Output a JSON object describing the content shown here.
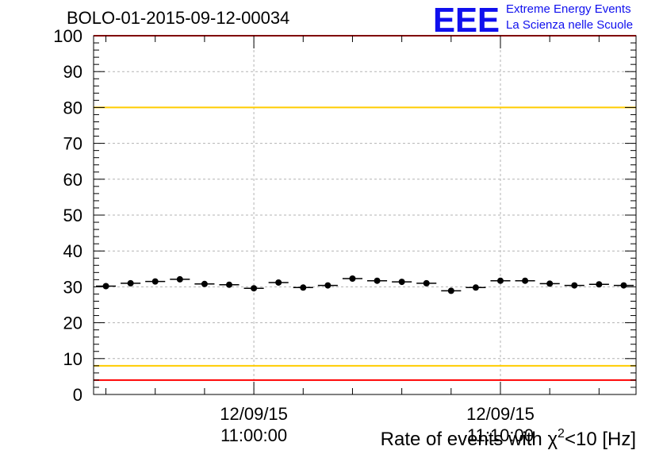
{
  "title": "BOLO-01-2015-09-12-00034",
  "logo": {
    "mark": "EEE",
    "line1": "Extreme Energy Events",
    "line2": "La Scienza nelle Scuole",
    "color": "#1010ee"
  },
  "chart_data": {
    "type": "scatter",
    "title": "BOLO-01-2015-09-12-00034",
    "xlabel_prefix": "Rate of events with",
    "xlabel_chi": "χ",
    "xlabel_sup": "2",
    "xlabel_suffix": "<10 [Hz]",
    "ylabel": "",
    "ylim": [
      0,
      100
    ],
    "y_ticks": [
      "0",
      "10",
      "20",
      "30",
      "40",
      "50",
      "60",
      "70",
      "80",
      "90",
      "100"
    ],
    "x_tick_labels": [
      {
        "date": "12/09/15",
        "time": "11:00:00",
        "bin": 6.5
      },
      {
        "date": "12/09/15",
        "time": "11:10:00",
        "bin": 16.5
      }
    ],
    "bins": 22,
    "values": [
      30.2,
      31.0,
      31.5,
      32.1,
      30.8,
      30.6,
      29.6,
      31.2,
      29.8,
      30.4,
      32.3,
      31.7,
      31.4,
      31.0,
      28.9,
      29.8,
      31.7,
      31.7,
      30.9,
      30.4,
      30.7,
      30.4
    ],
    "reference_lines": [
      {
        "value": 100,
        "color": "#ff0000"
      },
      {
        "value": 80,
        "color": "#ffcc00"
      },
      {
        "value": 8,
        "color": "#ffcc00"
      },
      {
        "value": 4,
        "color": "#ff0000"
      }
    ],
    "grid": true,
    "marker_color": "#000000"
  }
}
